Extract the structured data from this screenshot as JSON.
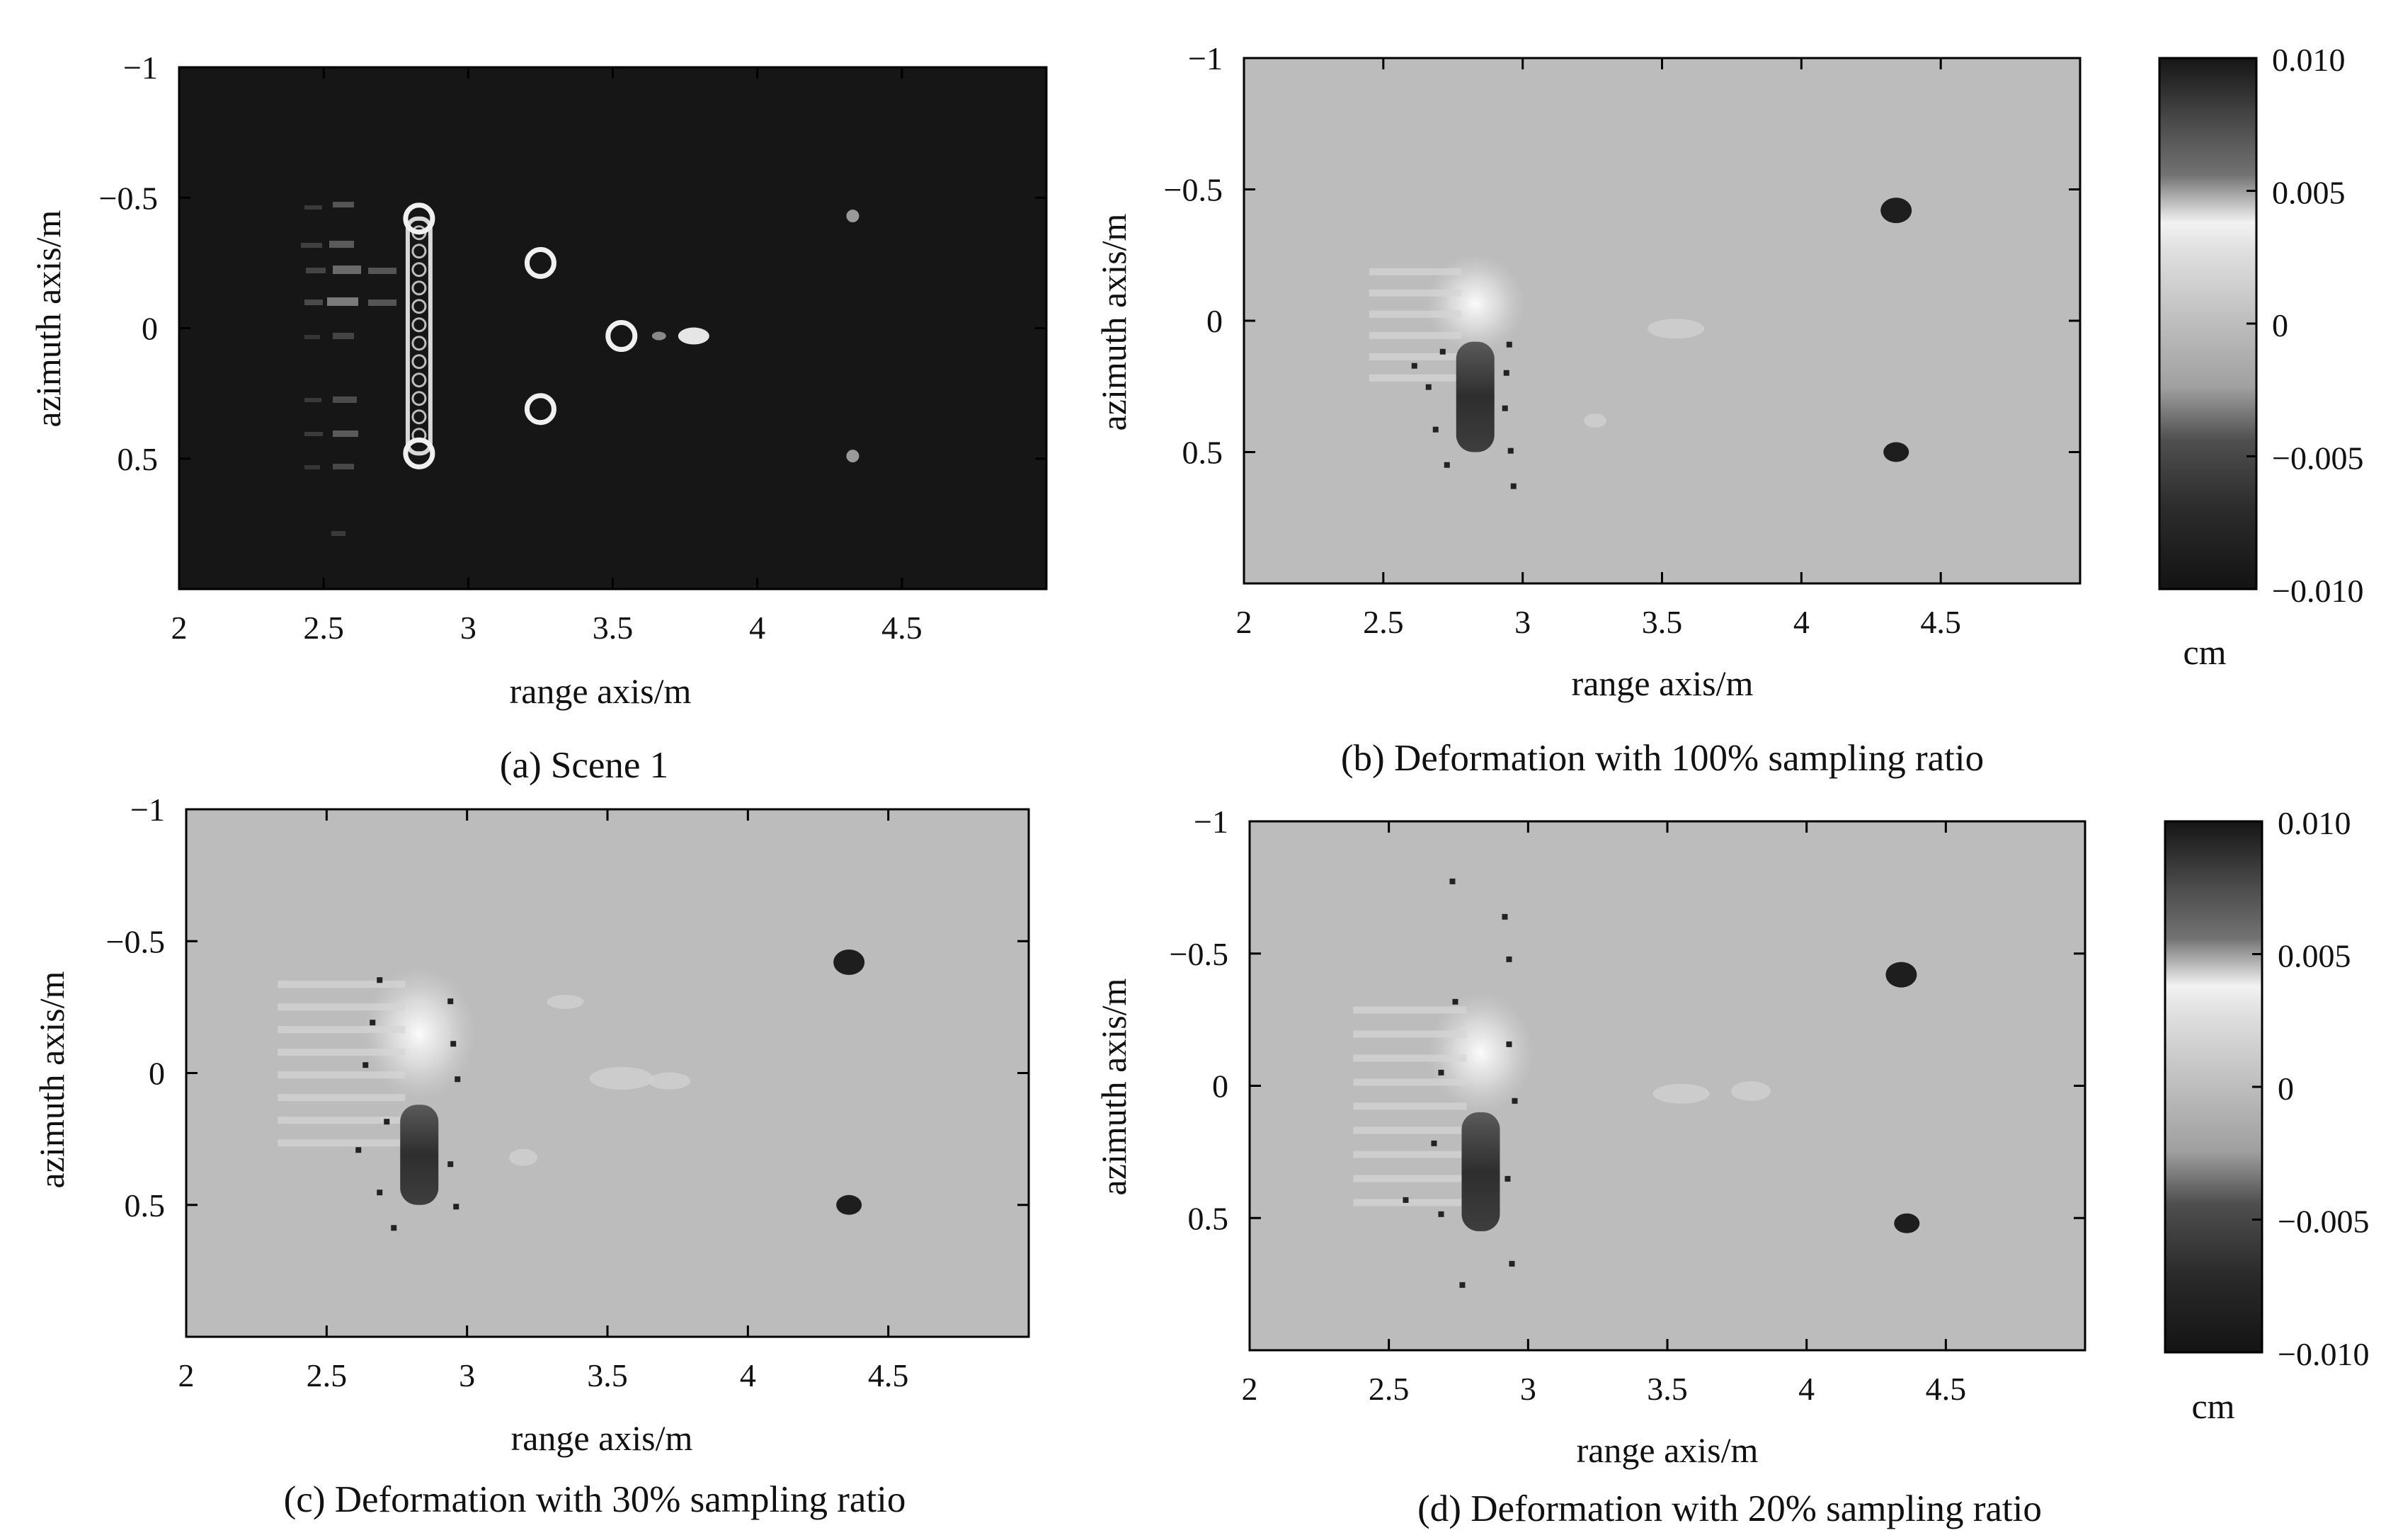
{
  "figure": {
    "panels": [
      {
        "id": "a",
        "caption": "(a) Scene 1",
        "xlabel": "range axis/m",
        "ylabel": "azimuth axis/m",
        "colormap": "intensity-dark",
        "colorbar": null
      },
      {
        "id": "b",
        "caption": "(b) Deformation with 100% sampling ratio",
        "xlabel": "range axis/m",
        "ylabel": "azimuth axis/m",
        "colormap": "deformation-gray",
        "colorbar": {
          "ticks": [
            "0.010",
            "0.005",
            "0",
            "−0.005",
            "−0.010"
          ],
          "unit": "cm"
        }
      },
      {
        "id": "c",
        "caption": "(c) Deformation with 30% sampling ratio",
        "xlabel": "range axis/m",
        "ylabel": "azimuth axis/m",
        "colormap": "deformation-gray",
        "colorbar": null
      },
      {
        "id": "d",
        "caption": "(d) Deformation with 20% sampling ratio",
        "xlabel": "range axis/m",
        "ylabel": "azimuth axis/m",
        "colormap": "deformation-gray",
        "colorbar": {
          "ticks": [
            "0.010",
            "0.005",
            "0",
            "−0.005",
            "−0.010"
          ],
          "unit": "cm"
        }
      }
    ]
  },
  "chart_data": [
    {
      "type": "heatmap",
      "title": "(a) Scene 1",
      "xlabel": "range axis/m",
      "ylabel": "azimuth axis/m",
      "xlim": [
        2,
        5
      ],
      "ylim": [
        -1,
        1
      ],
      "y_inverted": true,
      "xticks": [
        2,
        2.5,
        3,
        3.5,
        4,
        4.5
      ],
      "yticks": [
        -1,
        -0.5,
        0,
        0.5
      ],
      "scatterers": [
        {
          "range": 2.83,
          "azimuth": -0.42
        },
        {
          "range": 2.83,
          "azimuth": 0.48
        },
        {
          "range": 3.25,
          "azimuth": -0.25
        },
        {
          "range": 3.25,
          "azimuth": 0.31
        },
        {
          "range": 3.53,
          "azimuth": 0.03
        },
        {
          "range": 3.78,
          "azimuth": 0.03
        },
        {
          "range": 4.33,
          "azimuth": -0.43
        },
        {
          "range": 4.33,
          "azimuth": 0.49
        }
      ],
      "line_target": {
        "range": 2.83,
        "azimuth_from": -0.42,
        "azimuth_to": 0.48
      }
    },
    {
      "type": "heatmap",
      "title": "(b) Deformation with 100% sampling ratio",
      "xlabel": "range axis/m",
      "ylabel": "azimuth axis/m",
      "xlim": [
        2,
        5
      ],
      "ylim": [
        -1,
        1
      ],
      "y_inverted": true,
      "xticks": [
        2,
        2.5,
        3,
        3.5,
        4,
        4.5
      ],
      "yticks": [
        -1,
        -0.5,
        0,
        0.5
      ],
      "colorbar": {
        "min": -0.01,
        "max": 0.01,
        "ticks": [
          0.01,
          0.005,
          0,
          -0.005,
          -0.01
        ],
        "unit": "cm"
      },
      "background_value": 0,
      "features": [
        {
          "range": 2.83,
          "azimuth_from": -0.2,
          "azimuth_to": 0.07,
          "deformation": 0.003
        },
        {
          "range": 2.83,
          "azimuth_from": 0.08,
          "azimuth_to": 0.5,
          "deformation": 0.008
        },
        {
          "range": 4.34,
          "azimuth": -0.42,
          "deformation": 0.01
        },
        {
          "range": 4.34,
          "azimuth": 0.5,
          "deformation": 0.009
        }
      ]
    },
    {
      "type": "heatmap",
      "title": "(c) Deformation with 30% sampling ratio",
      "xlabel": "range axis/m",
      "ylabel": "azimuth axis/m",
      "xlim": [
        2,
        5
      ],
      "ylim": [
        -1,
        1
      ],
      "y_inverted": true,
      "xticks": [
        2,
        2.5,
        3,
        3.5,
        4,
        4.5
      ],
      "yticks": [
        -1,
        -0.5,
        0,
        0.5
      ],
      "background_value": 0,
      "features": [
        {
          "range": 2.83,
          "azimuth_from": -0.35,
          "azimuth_to": 0.05,
          "deformation": 0.003
        },
        {
          "range": 2.83,
          "azimuth_from": 0.12,
          "azimuth_to": 0.5,
          "deformation": 0.008
        },
        {
          "range": 4.36,
          "azimuth": -0.42,
          "deformation": 0.01
        },
        {
          "range": 4.36,
          "azimuth": 0.5,
          "deformation": 0.009
        }
      ]
    },
    {
      "type": "heatmap",
      "title": "(d) Deformation with 20% sampling ratio",
      "xlabel": "range axis/m",
      "ylabel": "azimuth axis/m",
      "xlim": [
        2,
        5
      ],
      "ylim": [
        -1,
        1
      ],
      "y_inverted": true,
      "xticks": [
        2,
        2.5,
        3,
        3.5,
        4,
        4.5
      ],
      "yticks": [
        -1,
        -0.5,
        0,
        0.5
      ],
      "colorbar": {
        "min": -0.01,
        "max": 0.01,
        "ticks": [
          0.01,
          0.005,
          0,
          -0.005,
          -0.01
        ],
        "unit": "cm"
      },
      "background_value": 0,
      "features": [
        {
          "range": 2.83,
          "azimuth_from": -0.3,
          "azimuth_to": 0.05,
          "deformation": 0.003
        },
        {
          "range": 2.83,
          "azimuth_from": 0.1,
          "azimuth_to": 0.55,
          "deformation": 0.008
        },
        {
          "range": 4.34,
          "azimuth": -0.42,
          "deformation": 0.01
        },
        {
          "range": 4.36,
          "azimuth": 0.52,
          "deformation": 0.009
        }
      ]
    }
  ]
}
